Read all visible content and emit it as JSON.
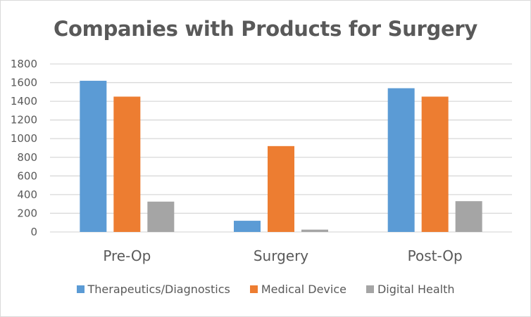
{
  "chart_data": {
    "type": "bar",
    "title": "Companies with Products for Surgery",
    "xlabel": "",
    "ylabel": "",
    "categories": [
      "Pre-Op",
      "Surgery",
      "Post-Op"
    ],
    "series": [
      {
        "name": "Therapeutics/Diagnostics",
        "color": "#5b9bd5",
        "values": [
          1620,
          120,
          1540
        ]
      },
      {
        "name": "Medical Device",
        "color": "#ed7d31",
        "values": [
          1450,
          920,
          1450
        ]
      },
      {
        "name": "Digital Health",
        "color": "#a5a5a5",
        "values": [
          325,
          25,
          330
        ]
      }
    ],
    "ylim": [
      0,
      1800
    ],
    "yticks": [
      "0",
      "200",
      "400",
      "600",
      "800",
      "1000",
      "1200",
      "1400",
      "1600",
      "1800"
    ],
    "grid": true,
    "legend_position": "bottom"
  }
}
